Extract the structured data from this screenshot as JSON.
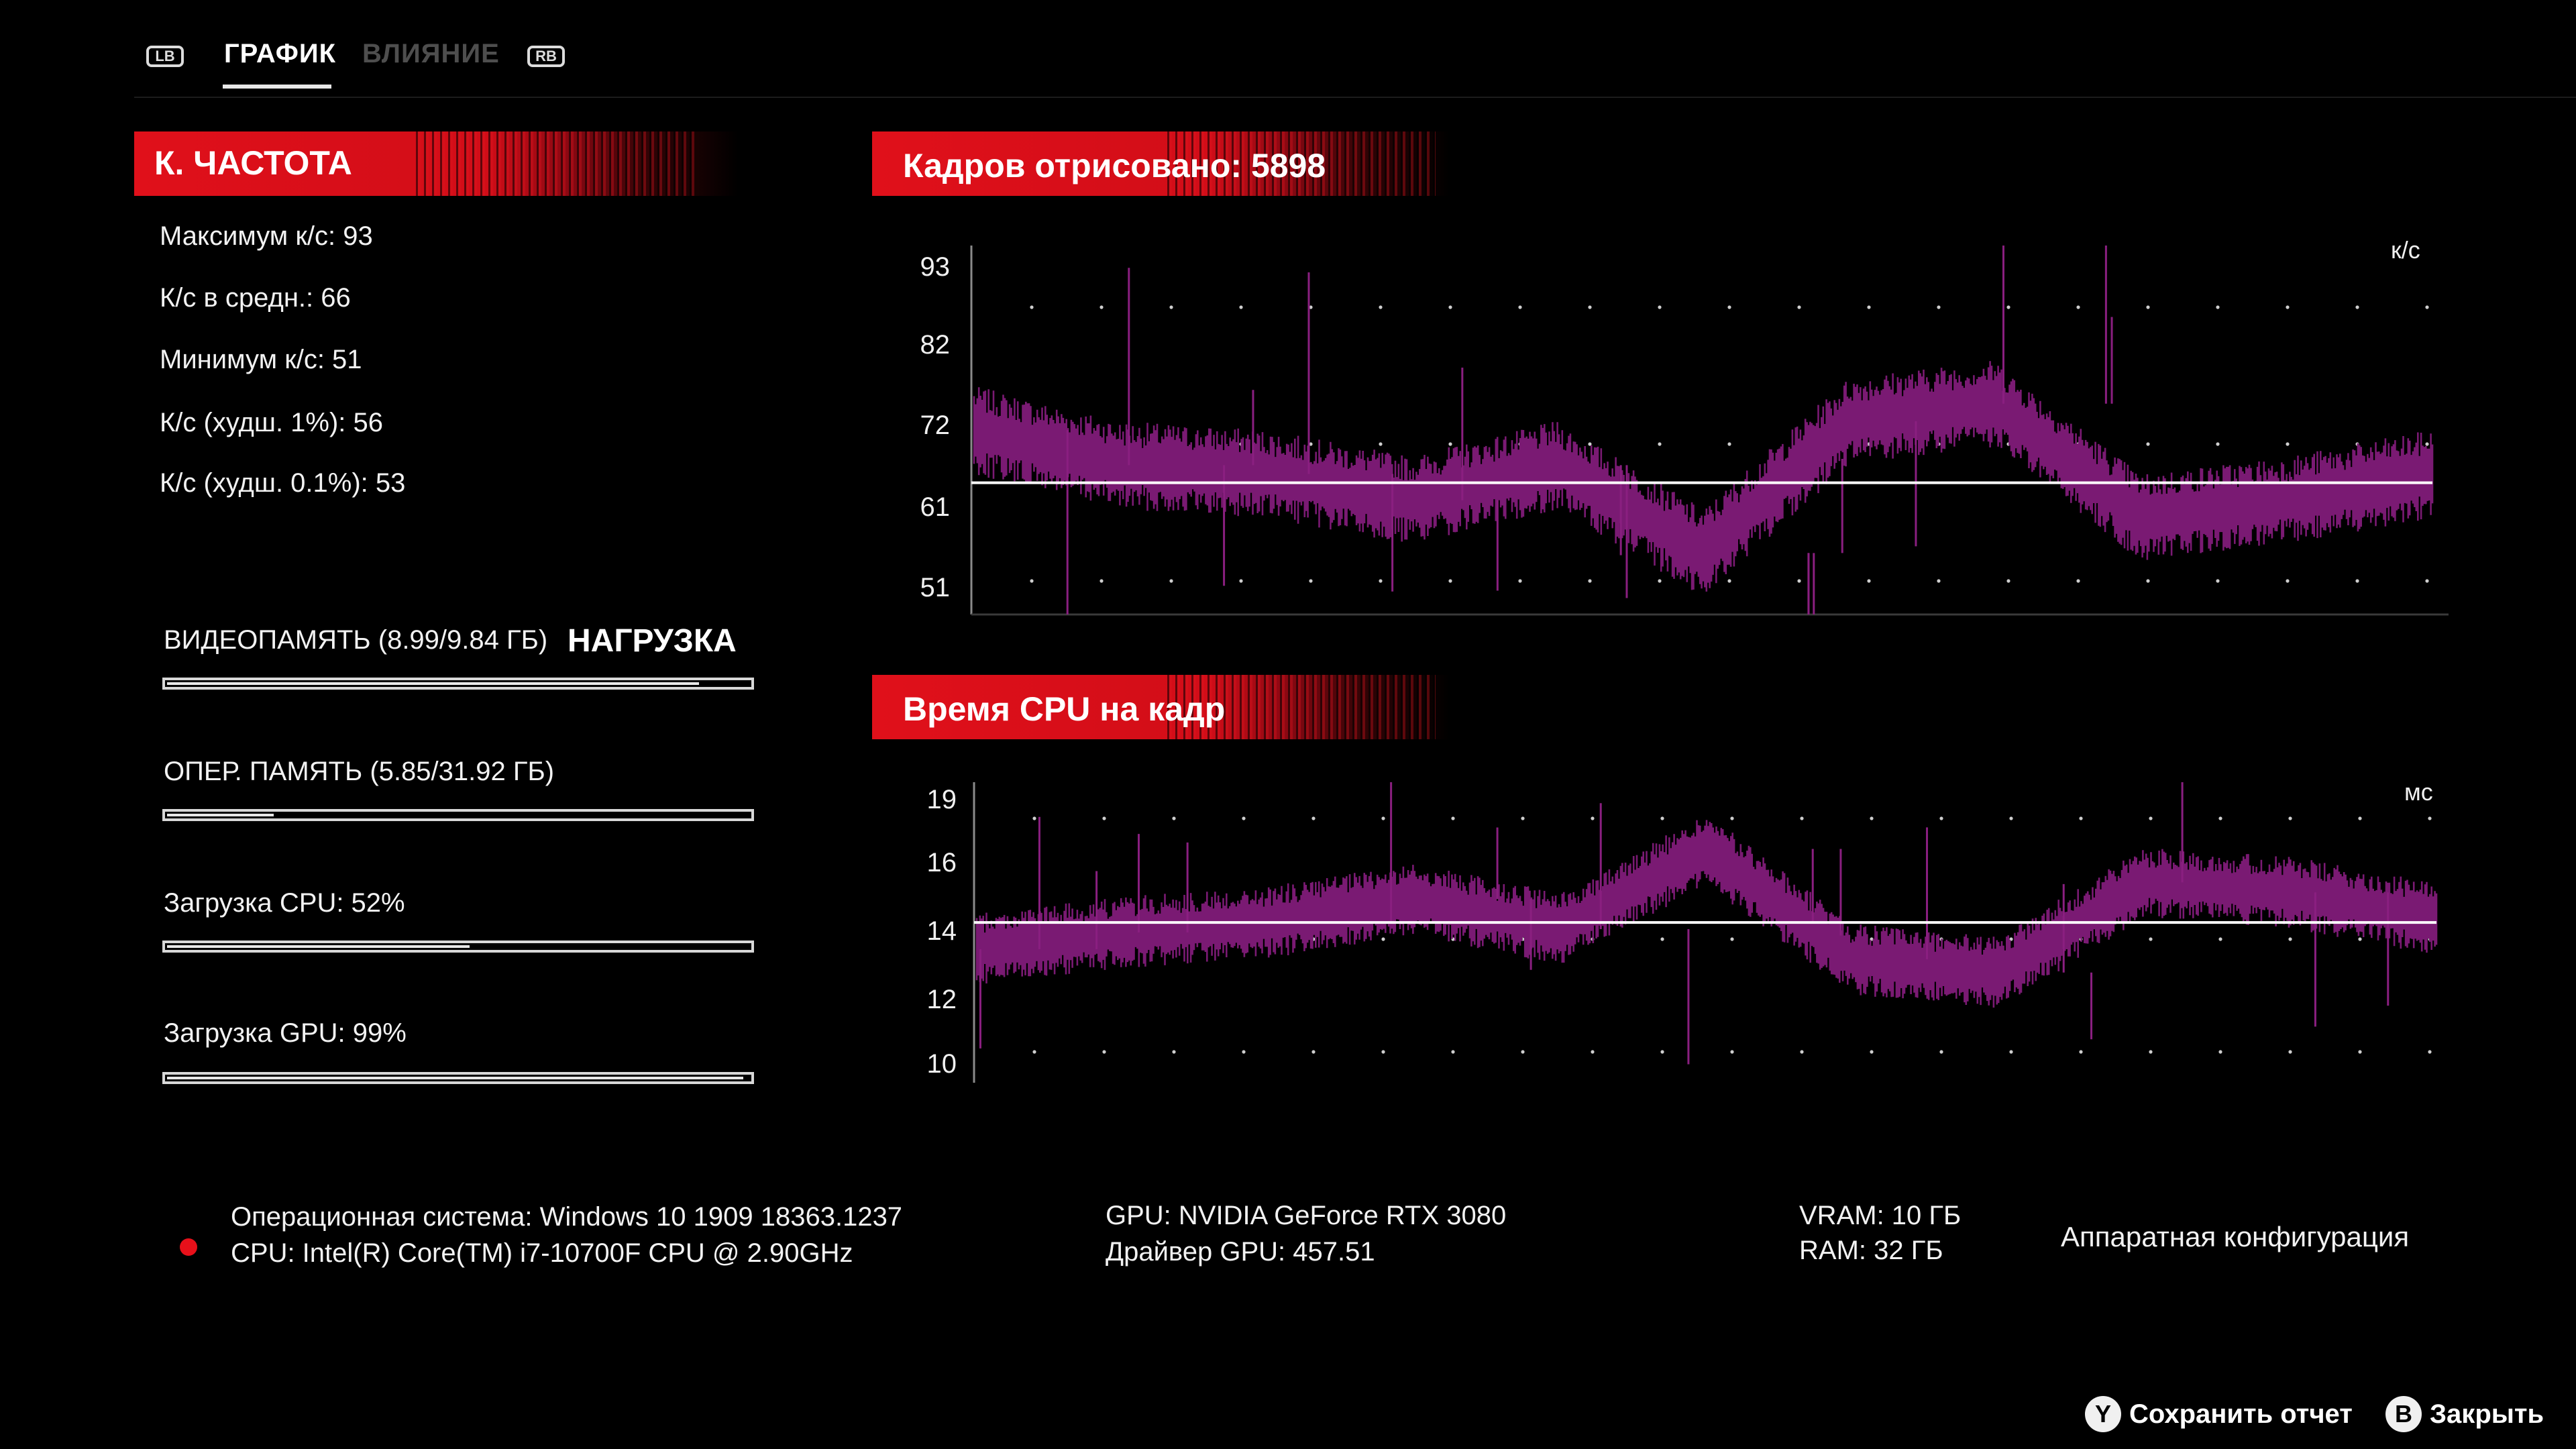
{
  "tabs": {
    "left_bumper": "LB",
    "right_bumper": "RB",
    "items": [
      {
        "label": "ГРАФИК",
        "active": true
      },
      {
        "label": "ВЛИЯНИЕ",
        "active": false
      }
    ]
  },
  "framerate": {
    "title": "К. ЧАСТОТА",
    "stats": [
      "Максимум к/с: 93",
      "К/с в средн.: 66",
      "Минимум к/с: 51",
      "К/с (худш. 1%): 56",
      "К/с (худш. 0.1%): 53"
    ]
  },
  "load": {
    "title": "НАГРУЗКА",
    "bars": [
      {
        "label": "ВИДЕОПАМЯТЬ (8.99/9.84 ГБ)",
        "fraction": 0.914
      },
      {
        "label": "ОПЕР. ПАМЯТЬ (5.85/31.92 ГБ)",
        "fraction": 0.183
      },
      {
        "label": "Загрузка CPU: 52%",
        "fraction": 0.52
      },
      {
        "label": "Загрузка GPU: 99%",
        "fraction": 0.99
      }
    ]
  },
  "fps_chart": {
    "title": "Кадров отрисовано: 5898",
    "unit": "к/с",
    "ticks": [
      "93",
      "82",
      "72",
      "61",
      "51"
    ],
    "ylim": [
      51,
      93
    ],
    "average": 66
  },
  "cpu_chart": {
    "title": "Время CPU на кадр",
    "unit": "мс",
    "ticks": [
      "19",
      "16",
      "14",
      "12",
      "10"
    ],
    "ylim": [
      10,
      19
    ],
    "average": 14.8
  },
  "system": {
    "os": "Операционная система: Windows 10 1909 18363.1237",
    "cpu": "CPU: Intel(R) Core(TM) i7-10700F CPU @ 2.90GHz",
    "gpu": "GPU: NVIDIA GeForce RTX 3080",
    "driver": "Драйвер GPU: 457.51",
    "vram": "VRAM: 10 ГБ",
    "ram": "RAM: 32 ГБ",
    "hardware_config": "Аппаратная конфигурация"
  },
  "buttons": {
    "save_icon": "Y",
    "save_label": "Сохранить отчет",
    "close_icon": "B",
    "close_label": "Закрыть"
  },
  "colors": {
    "accent_red": "#e0101a",
    "series": "#7a1a73",
    "average_line": "#ffffff"
  },
  "chart_data": [
    {
      "type": "line",
      "title": "Кадров отрисовано: 5898",
      "ylabel": "к/с",
      "ylim": [
        51,
        93
      ],
      "y_ticks": [
        93,
        82,
        72,
        61,
        51
      ],
      "series": [],
      "x": [
        0,
        10,
        20,
        30,
        40,
        50,
        60,
        70,
        80,
        90,
        100
      ],
      "values": [
        72,
        68,
        67,
        64,
        68,
        58,
        73,
        75,
        62,
        64,
        67
      ],
      "reference_line": 66,
      "grid": true
    },
    {
      "type": "line",
      "title": "Время CPU на кадр",
      "ylabel": "мс",
      "ylim": [
        10,
        19
      ],
      "y_ticks": [
        19,
        16,
        14,
        12,
        10
      ],
      "series": [],
      "x": [
        0,
        10,
        20,
        30,
        40,
        50,
        60,
        70,
        80,
        90,
        100
      ],
      "values": [
        14.0,
        14.5,
        14.8,
        15.5,
        14.6,
        17.0,
        13.7,
        13.3,
        16.0,
        15.7,
        14.9
      ],
      "reference_line": 14.8,
      "grid": true
    }
  ]
}
